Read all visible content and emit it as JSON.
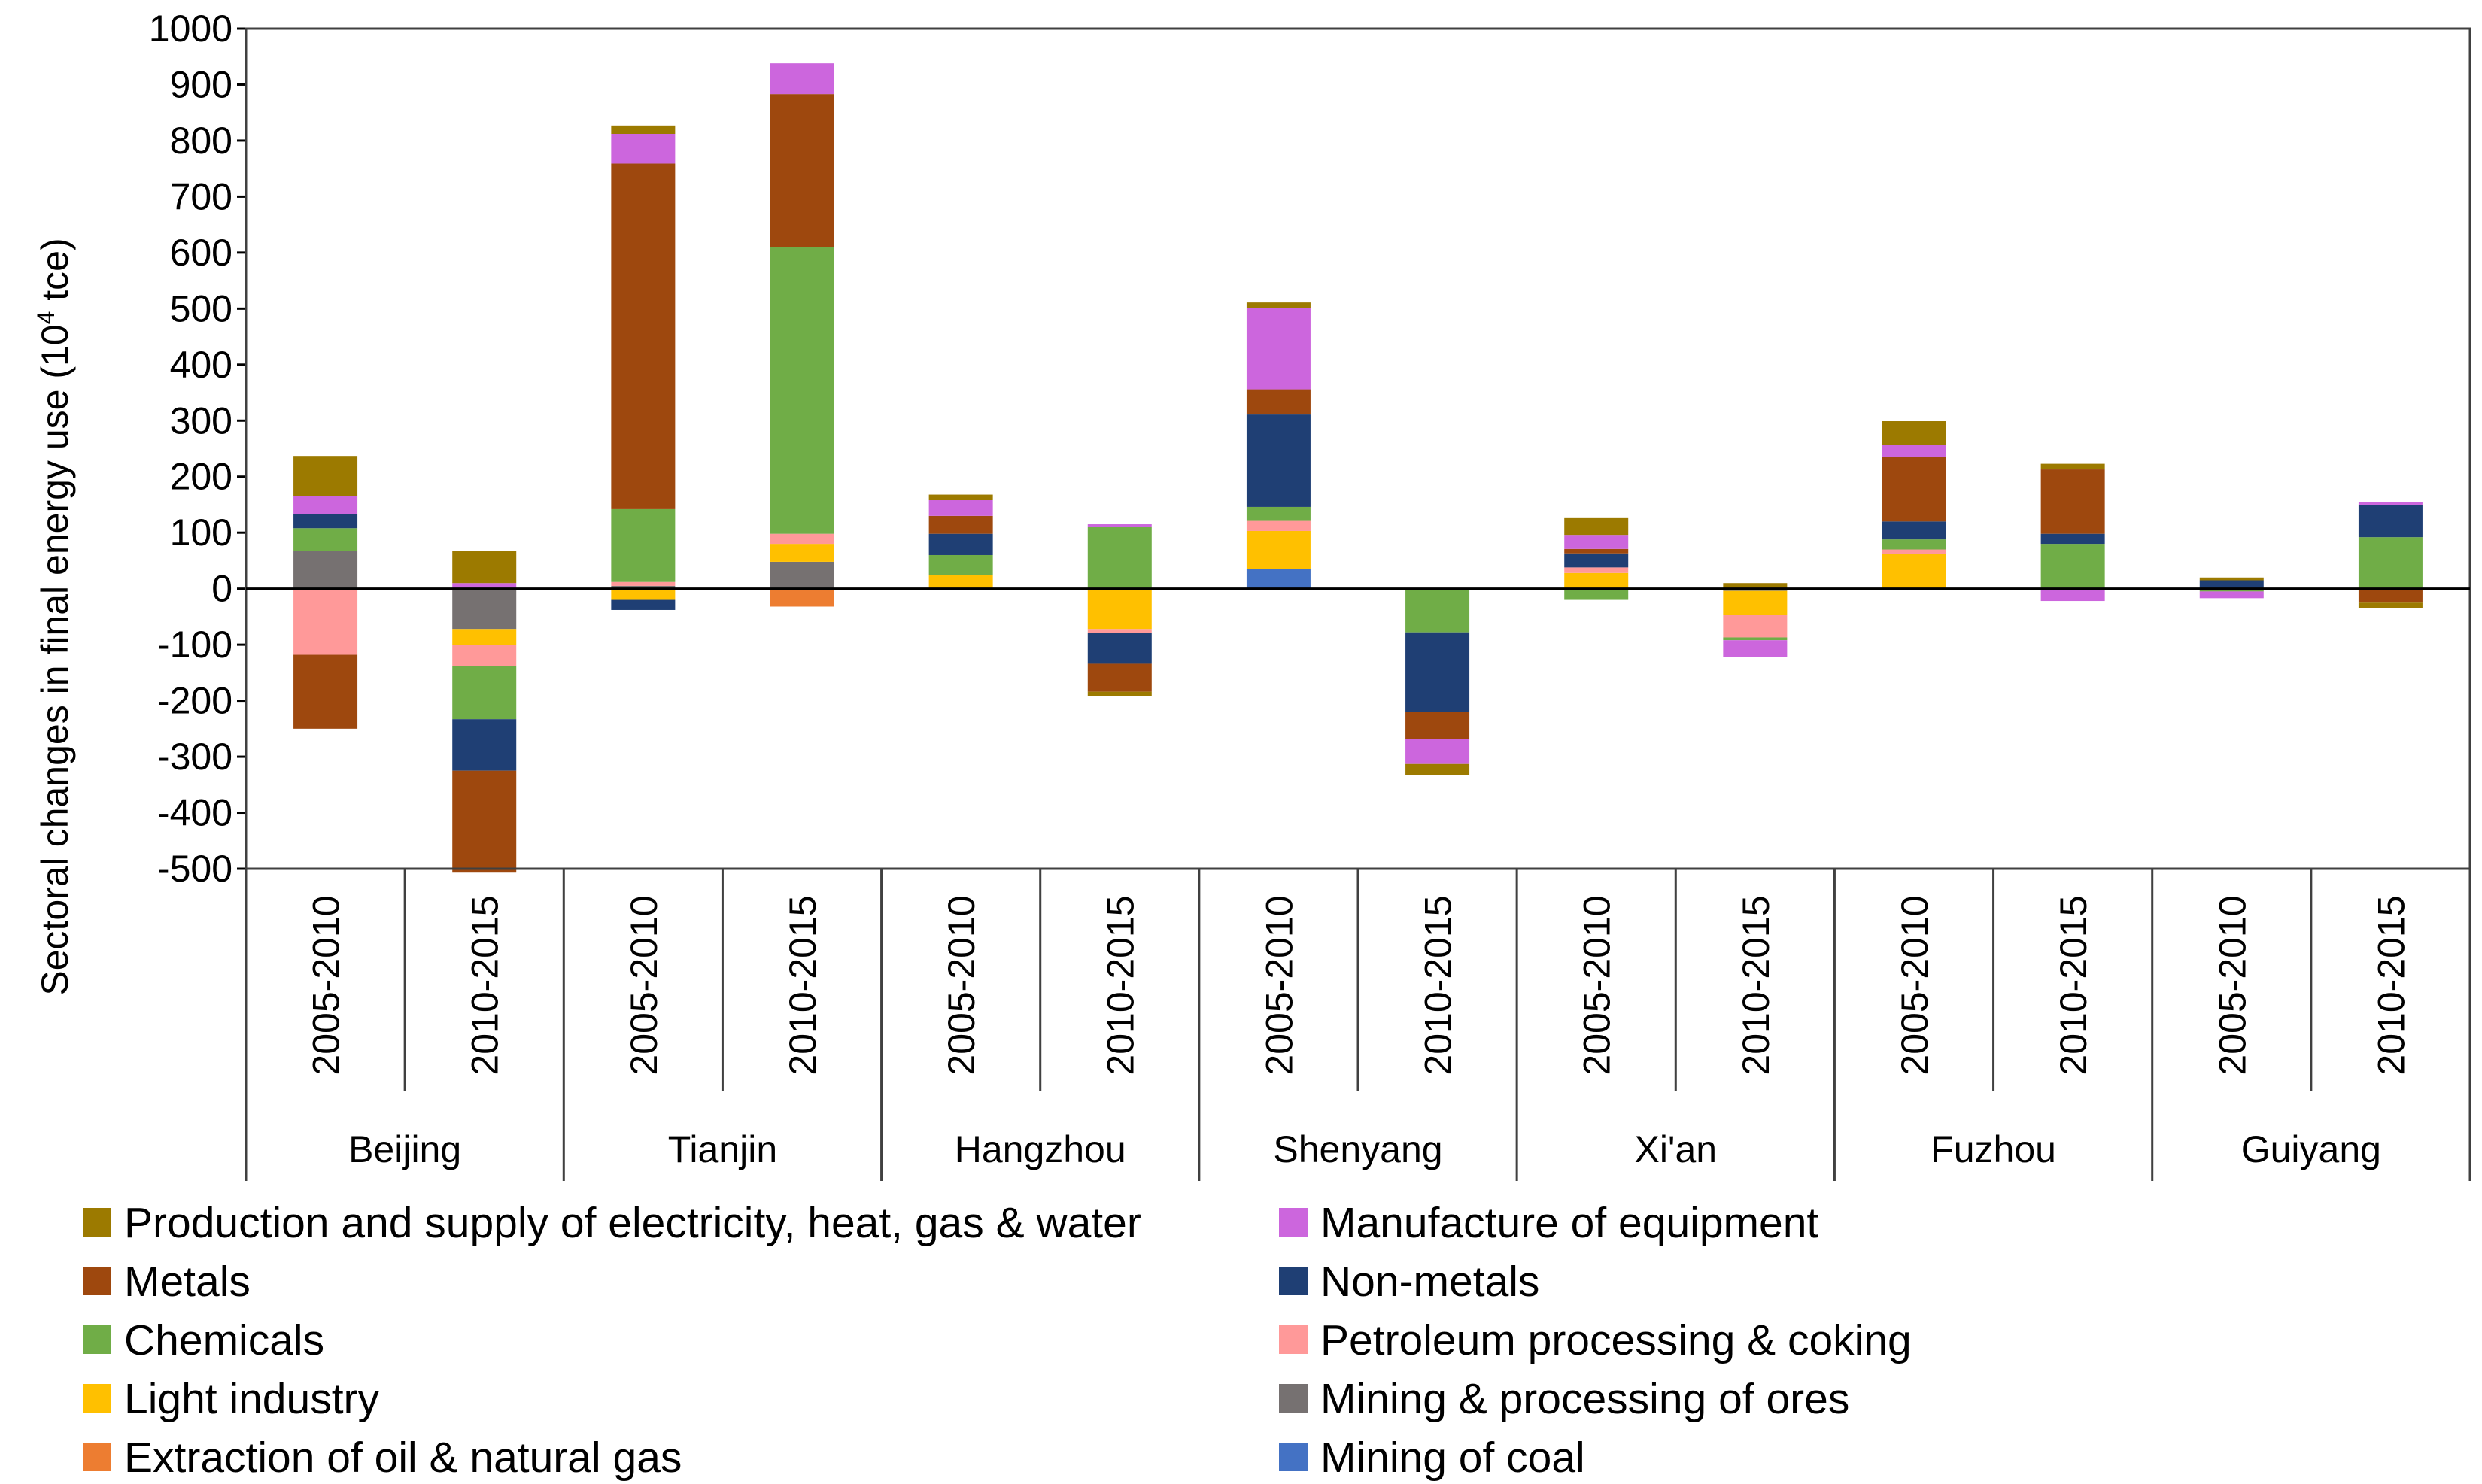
{
  "chart_data": {
    "type": "bar",
    "stacked": true,
    "title": "",
    "xlabel": "",
    "ylabel_main": "Sectoral changes in final energy use (10",
    "ylabel_sup": "4",
    "ylabel_unit": " tce)",
    "ylim": [
      -500,
      1000
    ],
    "yticks": [
      1000,
      900,
      800,
      700,
      600,
      500,
      400,
      300,
      200,
      100,
      0,
      -100,
      -200,
      -300,
      -400,
      -500
    ],
    "cities": [
      "Beijing",
      "Tianjin",
      "Hangzhou",
      "Shenyang",
      "Xi'an",
      "Fuzhou",
      "Guiyang"
    ],
    "periods": [
      "2005-2010",
      "2010-2015",
      "2005-2010",
      "2010-2015",
      "2005-2010",
      "2010-2015",
      "2005-2010",
      "2010-2015",
      "2005-2010",
      "2010-2015",
      "2005-2010",
      "2010-2015",
      "2005-2010",
      "2010-2015"
    ],
    "series": [
      {
        "name": "Mining of coal",
        "color": "#4472C4",
        "values": [
          0,
          0,
          0,
          0,
          0,
          0,
          35,
          0,
          0,
          0,
          0,
          0,
          0,
          0
        ]
      },
      {
        "name": "Extraction of oil & natural gas",
        "color": "#ED7D31",
        "values": [
          0,
          0,
          0,
          -32,
          0,
          0,
          0,
          0,
          0,
          0,
          0,
          0,
          0,
          0
        ]
      },
      {
        "name": "Mining & processing of ores",
        "color": "#767171",
        "values": [
          68,
          -72,
          5,
          48,
          0,
          0,
          0,
          0,
          0,
          -4,
          0,
          0,
          0,
          0
        ]
      },
      {
        "name": "Light industry",
        "color": "#FFC000",
        "values": [
          0,
          -28,
          -20,
          32,
          25,
          -72,
          68,
          0,
          28,
          -43,
          62,
          0,
          0,
          0
        ]
      },
      {
        "name": "Petroleum processing & coking",
        "color": "#FF9999",
        "values": [
          -118,
          -38,
          7,
          18,
          0,
          -7,
          18,
          0,
          10,
          -40,
          8,
          0,
          0,
          0
        ]
      },
      {
        "name": "Chemicals",
        "color": "#70AD47",
        "values": [
          40,
          -95,
          130,
          512,
          35,
          110,
          25,
          -78,
          -20,
          -5,
          18,
          80,
          -5,
          92
        ]
      },
      {
        "name": "Non-metals",
        "color": "#1F3F74",
        "values": [
          25,
          -92,
          -18,
          0,
          38,
          -55,
          165,
          -142,
          25,
          0,
          32,
          18,
          15,
          58
        ]
      },
      {
        "name": "Metals",
        "color": "#9E480E",
        "values": [
          -132,
          -182,
          617,
          273,
          32,
          -50,
          45,
          -48,
          8,
          0,
          115,
          115,
          0,
          -25
        ]
      },
      {
        "name": "Manufacture of equipment",
        "color": "#CC66DD",
        "values": [
          32,
          10,
          53,
          55,
          28,
          5,
          145,
          -45,
          25,
          -30,
          22,
          -22,
          -12,
          5
        ]
      },
      {
        "name": "Production and supply of electricity, heat, gas & water",
        "color": "#9C7A00",
        "values": [
          72,
          57,
          15,
          0,
          10,
          -8,
          10,
          -20,
          30,
          10,
          42,
          10,
          5,
          -10
        ]
      }
    ]
  },
  "legend": {
    "left": [
      "Production and supply of electricity, heat, gas & water",
      "Metals",
      "Chemicals",
      "Light industry",
      "Extraction of oil & natural gas"
    ],
    "right": [
      "Manufacture of equipment",
      "Non-metals",
      "Petroleum processing & coking",
      "Mining & processing of ores",
      "Mining of coal"
    ]
  }
}
